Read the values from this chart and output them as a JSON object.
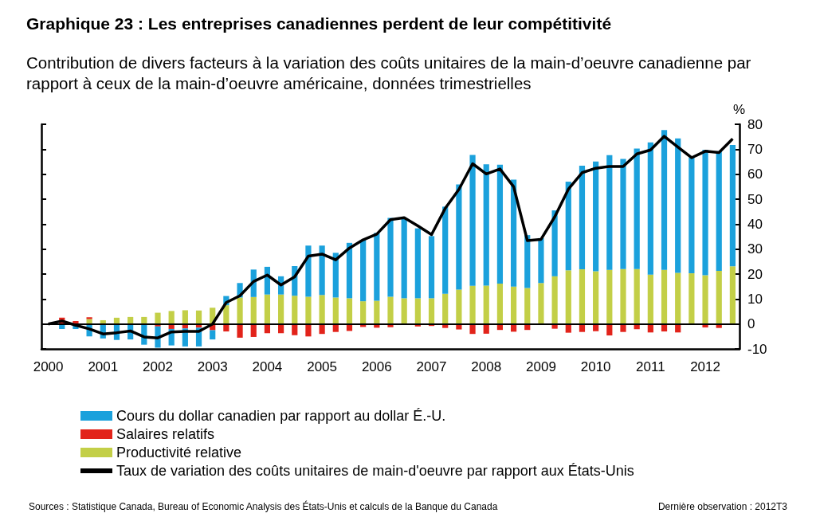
{
  "chart_data": {
    "type": "bar",
    "title": "Graphique 23 : Les entreprises canadiennes perdent de leur compétitivité",
    "subtitle": "Contribution de divers facteurs à la variation des coûts unitaires de la main-d’oeuvre canadienne par rapport à ceux de la main-d’oeuvre américaine, données trimestrielles",
    "ylabel": "%",
    "categories": [
      "2000",
      null,
      null,
      null,
      "2001",
      null,
      null,
      null,
      "2002",
      null,
      null,
      null,
      "2003",
      null,
      null,
      null,
      "2004",
      null,
      null,
      null,
      "2005",
      null,
      null,
      null,
      "2006",
      null,
      null,
      null,
      "2007",
      null,
      null,
      null,
      "2008",
      null,
      null,
      null,
      "2009",
      null,
      null,
      null,
      "2010",
      null,
      null,
      null,
      "2011",
      null,
      null,
      null,
      "2012",
      null,
      null
    ],
    "stacked": true,
    "series": [
      {
        "name": "Productivité relative",
        "color": "#c3cf47",
        "values": [
          0,
          0,
          0,
          2,
          1.5,
          2.5,
          2.8,
          2.8,
          4.5,
          5.2,
          5.5,
          5.4,
          6.5,
          7.5,
          10.6,
          10.8,
          11.8,
          11.8,
          11.3,
          10.9,
          11.6,
          10.6,
          10.3,
          9.1,
          9.3,
          10.9,
          10.3,
          10.3,
          10.3,
          12.1,
          13.8,
          15.3,
          15.4,
          16.2,
          15,
          14.4,
          16.4,
          19.1,
          21.5,
          21.9,
          21.1,
          21.7,
          22,
          22,
          19.8,
          21.7,
          20.5,
          20.3,
          19.5,
          21.3,
          23.1
        ]
      },
      {
        "name": "Salaires relatifs",
        "color": "#e2231a",
        "values": [
          0,
          2.5,
          1.2,
          0.7,
          0,
          0,
          0,
          0,
          -1,
          -2,
          -1.8,
          -1.5,
          -2.5,
          -3,
          -5.5,
          -5.2,
          -3.7,
          -3.7,
          -4.5,
          -5,
          -4,
          -3.2,
          -2.8,
          -1.2,
          -1.5,
          -1.3,
          0,
          -1,
          -0.8,
          -1.6,
          -2.2,
          -4,
          -3.9,
          -2.4,
          -3.1,
          -2.4,
          0,
          -1.9,
          -3.5,
          -3.2,
          -2.9,
          -4.6,
          -3.2,
          -2.1,
          -3.4,
          -3,
          -3.4,
          0,
          -1.4,
          -1.6,
          0
        ]
      },
      {
        "name": "Cours du dollar canadien par rapport au dollar É.-U.",
        "color": "#1ba1dc",
        "values": [
          0,
          -2,
          -2,
          -5,
          -5.8,
          -6.4,
          -6.2,
          -8.3,
          -8.5,
          -6.6,
          -7.2,
          -7.5,
          -3.7,
          3.7,
          5.8,
          11,
          11.1,
          7.3,
          11.9,
          20.5,
          19.8,
          17.9,
          22.2,
          24.6,
          27.2,
          31.6,
          32,
          28,
          24.9,
          34.9,
          42.1,
          52.4,
          48.6,
          47.6,
          42.8,
          21.2,
          18,
          26.4,
          35.5,
          41.5,
          44,
          45.9,
          44.1,
          48.3,
          52.9,
          56,
          53.8,
          46.4,
          50.3,
          47.9,
          48.6
        ]
      },
      {
        "type": "line",
        "name": "Taux de variation des coûts unitaires de main-d'oeuvre par rapport aux États-Unis",
        "color": "#000000",
        "values": [
          0,
          1.2,
          -0.5,
          -2,
          -4,
          -3.5,
          -2.8,
          -5.2,
          -5.6,
          -3.2,
          -3,
          -3,
          0,
          8.6,
          11.3,
          17,
          19.6,
          15.6,
          18.9,
          27.2,
          28,
          25.7,
          30.4,
          33.7,
          36,
          41.8,
          42.6,
          39.3,
          35.8,
          46.3,
          53.9,
          64.2,
          60.1,
          62.1,
          55,
          33.4,
          33.9,
          42.9,
          54,
          60.6,
          62.4,
          63.1,
          63.1,
          68.1,
          69.7,
          75.2,
          70.9,
          66.6,
          69.2,
          68.7,
          74.2
        ]
      }
    ],
    "ylim": [
      -10,
      80
    ],
    "yticks": [
      -10,
      0,
      10,
      20,
      30,
      40,
      50,
      60,
      70,
      80
    ],
    "ref_lines": [
      {
        "axis": "y",
        "value": 0,
        "color": "#000000"
      }
    ],
    "legend": "bottom",
    "grid": false,
    "marker": "none",
    "annotations": [
      "Sources : Statistique Canada, Bureau of Economic Analysis des États-Unis et calculs de la Banque du Canada",
      "Dernière observation : 2012T3"
    ]
  }
}
